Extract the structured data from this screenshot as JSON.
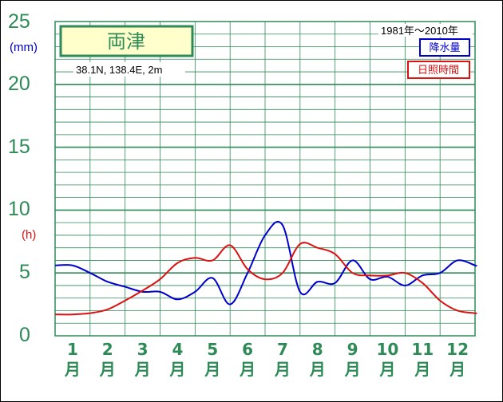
{
  "chart_data": {
    "type": "line",
    "station": "両津",
    "location_text": "38.1N,  138.4E,  2m",
    "period": "1981年〜2010年",
    "unit_precip": "(mm)",
    "unit_sun": "(h)",
    "y_ticks": [
      "25",
      "20",
      "15",
      "10",
      "5",
      "0"
    ],
    "ylim": [
      0,
      25
    ],
    "months": [
      {
        "num": "1",
        "kanji": "月"
      },
      {
        "num": "2",
        "kanji": "月"
      },
      {
        "num": "3",
        "kanji": "月"
      },
      {
        "num": "4",
        "kanji": "月"
      },
      {
        "num": "5",
        "kanji": "月"
      },
      {
        "num": "6",
        "kanji": "月"
      },
      {
        "num": "7",
        "kanji": "月"
      },
      {
        "num": "8",
        "kanji": "月"
      },
      {
        "num": "9",
        "kanji": "月"
      },
      {
        "num": "10",
        "kanji": "月"
      },
      {
        "num": "11",
        "kanji": "月"
      },
      {
        "num": "12",
        "kanji": "月"
      }
    ],
    "series": [
      {
        "name": "降水量",
        "color": "#0000cd",
        "x": [
          1,
          1.5,
          2,
          2.5,
          3,
          3.5,
          4,
          4.5,
          5,
          5.5,
          6,
          6.5,
          7,
          7.5,
          8,
          8.5,
          9,
          9.5,
          10,
          10.5,
          11,
          11.5,
          12,
          12.5
        ],
        "values": [
          5.6,
          5.0,
          4.3,
          3.9,
          3.5,
          3.5,
          2.9,
          3.5,
          4.6,
          2.5,
          5.0,
          8.0,
          8.8,
          3.5,
          4.3,
          4.2,
          6.0,
          4.5,
          4.7,
          4.0,
          4.8,
          5.0,
          6.0,
          5.6
        ]
      },
      {
        "name": "日照時間",
        "color": "#dd1111",
        "x": [
          1,
          1.5,
          2,
          2.5,
          3,
          3.5,
          4,
          4.5,
          5,
          5.5,
          6,
          6.5,
          7,
          7.5,
          8,
          8.5,
          9,
          9.5,
          10,
          10.5,
          11,
          11.5,
          12,
          12.5
        ],
        "values": [
          1.7,
          1.8,
          2.1,
          2.8,
          3.6,
          4.5,
          5.8,
          6.2,
          6.0,
          7.2,
          5.3,
          4.5,
          5.0,
          7.3,
          7.0,
          6.5,
          5.0,
          4.8,
          4.8,
          5.0,
          4.2,
          2.8,
          2.0,
          1.8
        ]
      }
    ],
    "grid": true,
    "legend_position": "top-right"
  }
}
